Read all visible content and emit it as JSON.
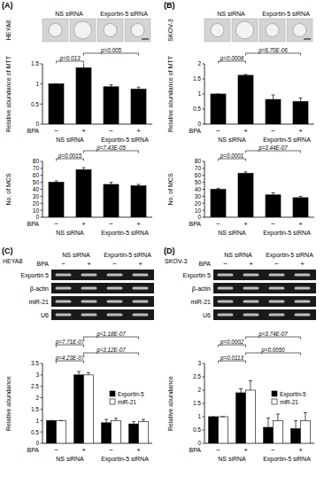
{
  "panels": [
    {
      "label": "(A)",
      "cell_line": "HEYA8",
      "image_groups": [
        "NS siRNA",
        "Exportin-5 siRNA"
      ]
    },
    {
      "label": "(B)",
      "cell_line": "SKOV-3",
      "image_groups": [
        "NS siRNA",
        "Exportin-5 siRNA"
      ]
    },
    {
      "label": "(C)",
      "cell_line": "HEYA8",
      "gel_groups": [
        "NS siRNA",
        "Exportin-5 siRNA"
      ],
      "gel_x_label": "BPA",
      "gel_lanes": [
        "−",
        "+",
        "−",
        "+"
      ],
      "gel_rows": [
        "Exportin 5",
        "β-actin",
        "miR-21",
        "U6"
      ]
    },
    {
      "label": "(D)",
      "cell_line": "SKOV-3",
      "gel_groups": [
        "NS siRNA",
        "Exportin-5 siRNA"
      ],
      "gel_x_label": "BPA",
      "gel_lanes": [
        "−",
        "+",
        "−",
        "+"
      ],
      "gel_rows": [
        "Exportin 5",
        "β-actin",
        "miR-21",
        "U6"
      ]
    }
  ],
  "chart_data": [
    {
      "type": "bar",
      "y_label": "Relative abundance of MTT",
      "x_label": "BPA",
      "categories": [
        "−",
        "+",
        "−",
        "+"
      ],
      "groups": [
        "NS siRNA",
        "Exportin-5 siRNA"
      ],
      "values": [
        1,
        1.4,
        0.93,
        0.87
      ],
      "errors": [
        0,
        0.2,
        0.05,
        0.05
      ],
      "color": "#000000",
      "ylim": [
        0,
        1.5
      ],
      "yticks": [
        0,
        0.5,
        1,
        1.5
      ],
      "annotations": [
        {
          "text": "p=0.013",
          "from": 0,
          "to": 1
        },
        {
          "text": "p=0.005",
          "from": 1,
          "to": 3
        }
      ]
    },
    {
      "type": "bar",
      "y_label": "No. of MCS",
      "x_label": "BPA",
      "categories": [
        "−",
        "+",
        "−",
        "+"
      ],
      "groups": [
        "NS siRNA",
        "Exportin-5 siRNA"
      ],
      "values": [
        50,
        68,
        47,
        45
      ],
      "errors": [
        2,
        3,
        3,
        2
      ],
      "color": "#000000",
      "ylim": [
        0,
        80
      ],
      "yticks": [
        0,
        10,
        20,
        30,
        40,
        50,
        60,
        70,
        80
      ],
      "annotations": [
        {
          "text": "p=0.0015",
          "from": 0,
          "to": 1
        },
        {
          "text": "p=7.43E-05",
          "from": 1,
          "to": 3
        }
      ]
    },
    {
      "type": "bar",
      "y_label": "Relative abundance of MTT",
      "x_label": "BPA",
      "categories": [
        "−",
        "+",
        "−",
        "+"
      ],
      "groups": [
        "NS siRNA",
        "Exportin-5 siRNA"
      ],
      "values": [
        1,
        1.62,
        0.82,
        0.75
      ],
      "errors": [
        0,
        0.03,
        0.15,
        0.12
      ],
      "color": "#000000",
      "ylim": [
        0,
        2
      ],
      "yticks": [
        0,
        0.5,
        1,
        1.5,
        2
      ],
      "annotations": [
        {
          "text": "p=0.0008",
          "from": 0,
          "to": 1
        },
        {
          "text": "p=6.70E-06",
          "from": 1,
          "to": 3
        }
      ]
    },
    {
      "type": "bar",
      "y_label": "No. of MCS",
      "x_label": "BPA",
      "categories": [
        "−",
        "+",
        "−",
        "+"
      ],
      "groups": [
        "NS siRNA",
        "Exportin-5 siRNA"
      ],
      "values": [
        40,
        63,
        32,
        28
      ],
      "errors": [
        1.5,
        2,
        3,
        2
      ],
      "color": "#000000",
      "ylim": [
        0,
        80
      ],
      "yticks": [
        0,
        10,
        20,
        30,
        40,
        50,
        60,
        70,
        80
      ],
      "annotations": [
        {
          "text": "p=0.0001",
          "from": 0,
          "to": 1
        },
        {
          "text": "p=3.44E-07",
          "from": 1,
          "to": 3
        }
      ]
    },
    {
      "type": "bar",
      "y_label": "Relative abundance",
      "x_label": "BPA",
      "categories": [
        "−",
        "+",
        "−",
        "+"
      ],
      "groups": [
        "NS siRNA",
        "Exportin-5 siRNA"
      ],
      "series": [
        {
          "name": "Exportin-5",
          "color": "#000000",
          "values": [
            1,
            3.0,
            0.9,
            0.85
          ],
          "errors": [
            0,
            0.15,
            0.15,
            0.1
          ]
        },
        {
          "name": "miR-21",
          "color": "#ffffff",
          "values": [
            1,
            3.0,
            1.0,
            0.95
          ],
          "errors": [
            0,
            0.1,
            0.1,
            0.1
          ]
        }
      ],
      "legend": "right",
      "ylim": [
        0,
        3.5
      ],
      "yticks": [
        0,
        0.5,
        1,
        1.5,
        2,
        2.5,
        3,
        3.5
      ],
      "annotations": [
        {
          "text": "p=4.23E-07",
          "from": 0,
          "to": 1
        },
        {
          "text": "p=3.12E-07",
          "from": 1,
          "to": 3
        },
        {
          "text": "p=7.71E-07",
          "from": 0,
          "to": 1
        },
        {
          "text": "p=1.18E-07",
          "from": 1,
          "to": 3
        }
      ]
    },
    {
      "type": "bar",
      "y_label": "Relative abundance",
      "x_label": "BPA",
      "categories": [
        "−",
        "+",
        "−",
        "+"
      ],
      "groups": [
        "NS siRNA",
        "Exportin-5 siRNA"
      ],
      "series": [
        {
          "name": "Exportin-5",
          "color": "#000000",
          "values": [
            1,
            1.9,
            0.6,
            0.55
          ],
          "errors": [
            0,
            0.15,
            0.35,
            0.3
          ]
        },
        {
          "name": "miR-21",
          "color": "#ffffff",
          "values": [
            1,
            2.0,
            0.85,
            0.85
          ],
          "errors": [
            0,
            0.35,
            0.25,
            0.3
          ]
        }
      ],
      "legend": "right",
      "ylim": [
        0,
        3
      ],
      "yticks": [
        0,
        0.5,
        1,
        1.5,
        2,
        2.5,
        3
      ],
      "annotations": [
        {
          "text": "p=0.0113",
          "from": 0,
          "to": 1
        },
        {
          "text": "p=0.0050",
          "from": 1,
          "to": 3
        },
        {
          "text": "p=0.0002",
          "from": 0,
          "to": 1
        },
        {
          "text": "p=3.74E-07",
          "from": 1,
          "to": 3
        }
      ]
    }
  ]
}
